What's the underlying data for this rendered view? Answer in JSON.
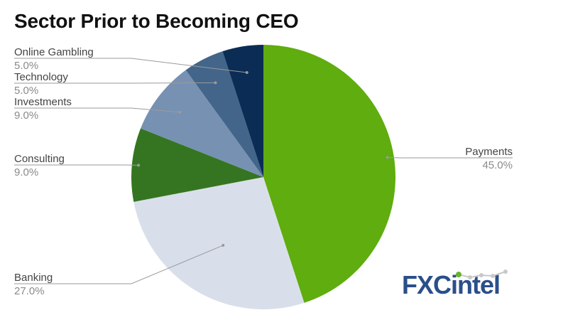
{
  "chart_data": {
    "type": "pie",
    "title": "Sector Prior to Becoming CEO",
    "slices": [
      {
        "name": "Payments",
        "value": 45.0,
        "label": "45.0%",
        "color": "#5fad0e"
      },
      {
        "name": "Banking",
        "value": 27.0,
        "label": "27.0%",
        "color": "#d9dfea"
      },
      {
        "name": "Consulting",
        "value": 9.0,
        "label": "9.0%",
        "color": "#357521"
      },
      {
        "name": "Investments",
        "value": 9.0,
        "label": "9.0%",
        "color": "#7791b2"
      },
      {
        "name": "Technology",
        "value": 5.0,
        "label": "5.0%",
        "color": "#43658a"
      },
      {
        "name": "Online Gambling",
        "value": 5.0,
        "label": "5.0%",
        "color": "#0b2c54"
      }
    ],
    "start": "top",
    "direction": "clockwise",
    "legend": "none"
  },
  "logo": {
    "text": "FXCintel",
    "primary_color": "#2a4f8a",
    "accent_color": "#6ab42d"
  }
}
